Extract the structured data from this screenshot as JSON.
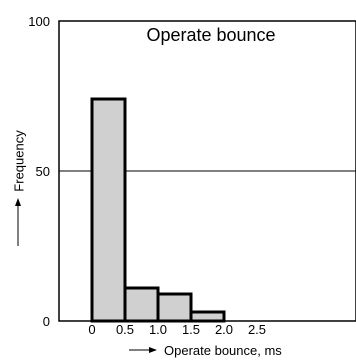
{
  "chart_data": {
    "type": "bar",
    "title": "Operate bounce",
    "xlabel": "Operate bounce, ms",
    "ylabel": "Frequency",
    "bins": [
      {
        "start": 0.0,
        "end": 0.5,
        "value": 74
      },
      {
        "start": 0.5,
        "end": 1.0,
        "value": 11
      },
      {
        "start": 1.0,
        "end": 1.5,
        "value": 9
      },
      {
        "start": 1.5,
        "end": 2.0,
        "value": 3
      }
    ],
    "xticks": [
      "0",
      "0.5",
      "1.0",
      "1.5",
      "2.0",
      "2.5"
    ],
    "yticks": [
      "0",
      "50",
      "100"
    ],
    "ylim": [
      0,
      100
    ],
    "reference_line_y": 50,
    "bar_fill": "#d0d0d0",
    "bar_stroke": "#000000",
    "grid": false
  }
}
